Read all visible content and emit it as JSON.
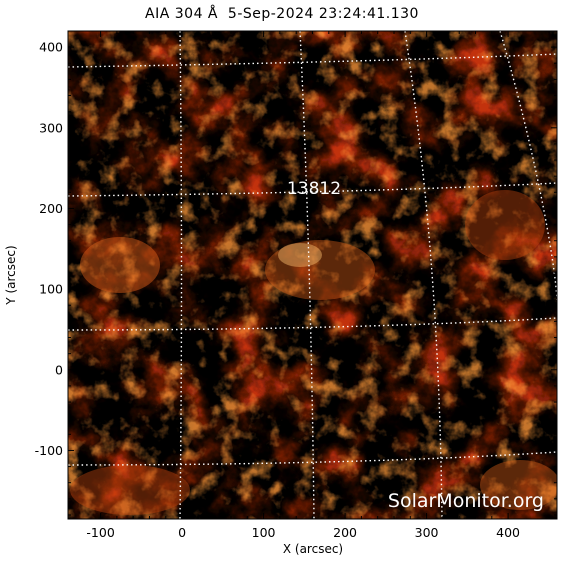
{
  "title": "AIA 304 Å  5-Sep-2024 23:24:41.130",
  "region_label": "13812",
  "watermark": "SolarMonitor.org",
  "axes": {
    "xlabel": "X (arcsec)",
    "ylabel": "Y (arcsec)",
    "xlim": [
      -140,
      460
    ],
    "ylim": [
      -185,
      420
    ],
    "xticks": [
      "-100",
      "0",
      "100",
      "200",
      "300",
      "400"
    ],
    "yticks": [
      "-100",
      "0",
      "100",
      "200",
      "300",
      "400"
    ]
  },
  "colors": {
    "background": "#000000",
    "dark_red": "#5a0600",
    "red": "#a81a00",
    "orange": "#e05a10",
    "bright": "#ffc070",
    "grid": "#ffffff"
  }
}
